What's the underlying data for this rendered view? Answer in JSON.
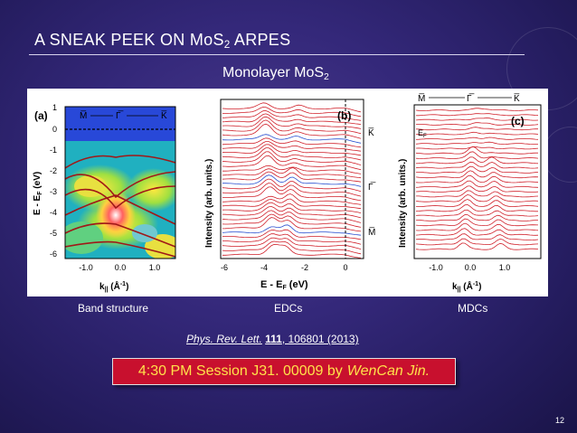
{
  "slide": {
    "title_main": "A SNEAK PEEK ON MoS",
    "title_sub": "2",
    "title_tail": " ARPES",
    "subtitle_main": "Monolayer MoS",
    "subtitle_sub": "2",
    "page_number": "12"
  },
  "figure": {
    "panel_a": {
      "label": "(a)",
      "path_labels": [
        "M̅",
        "Γ̅",
        "K̅"
      ],
      "y_axis_label": "E - E",
      "y_axis_label_sub": "F",
      "y_axis_label_unit": " (eV)",
      "y_ticks": [
        "1",
        "0",
        "-1",
        "-2",
        "-3",
        "-4",
        "-5",
        "-6"
      ],
      "x_ticks": [
        "-1.0",
        "0.0",
        "1.0"
      ],
      "x_axis_label": "k",
      "x_axis_label_sub": "||",
      "x_axis_label_unit": " (Å",
      "x_axis_label_exp": "-1",
      "x_axis_label_close": ")"
    },
    "panel_b": {
      "label": "(b)",
      "y_axis_label": "Intensity (arb. units.)",
      "side_labels": [
        "K̅",
        "Γ̅",
        "M̅"
      ],
      "x_ticks": [
        "-6",
        "-4",
        "-2",
        "0"
      ],
      "x_axis_label": "E - E",
      "x_axis_label_sub": "F",
      "x_axis_label_unit": " (eV)"
    },
    "panel_c": {
      "label": "(c)",
      "path_labels": [
        "M̅",
        "Γ̅",
        "K̅"
      ],
      "ef_label": "E",
      "ef_label_sub": "F",
      "y_axis_label": "Intensity (arb. units.)",
      "x_ticks": [
        "-1.0",
        "0.0",
        "1.0"
      ],
      "x_axis_label": "k",
      "x_axis_label_sub": "||",
      "x_axis_label_unit": " (Å",
      "x_axis_label_exp": "-1",
      "x_axis_label_close": ")"
    }
  },
  "captions": {
    "band": "Band structure",
    "edc": "EDCs",
    "mdc": "MDCs"
  },
  "reference": {
    "journal": "Phys. Rev. Lett.",
    "volume": "111",
    "article": "106801 (2013)"
  },
  "session": {
    "text": "4:30 PM Session J31. 00009 by",
    "presenter": "WenCan Jin."
  },
  "colors": {
    "background": "#2c2270",
    "session_box": "#c8102e",
    "session_text": "#ffe14a",
    "edc_curves": "#d0202a",
    "edc_highlight": "#2a50d0"
  }
}
